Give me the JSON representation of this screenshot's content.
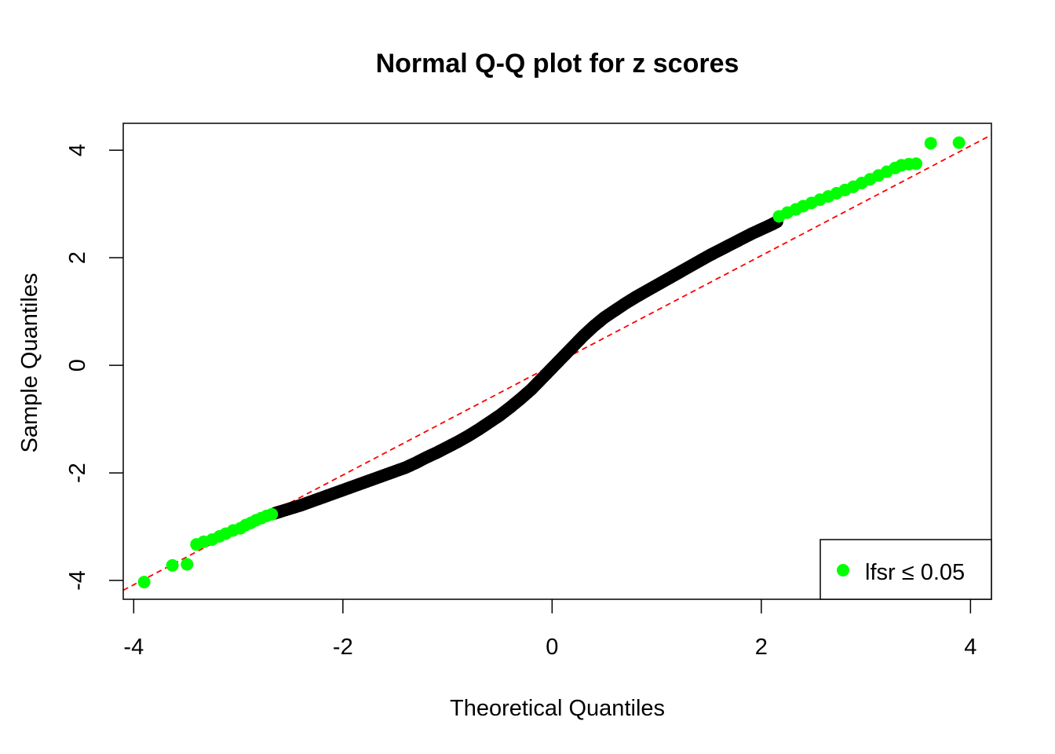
{
  "chart_data": {
    "type": "scatter",
    "title": "Normal Q-Q plot for z scores",
    "xlabel": "Theoretical Quantiles",
    "ylabel": "Sample Quantiles",
    "xlim": [
      -4.1,
      4.2
    ],
    "ylim": [
      -4.35,
      4.5
    ],
    "x_ticks": [
      -4,
      -2,
      0,
      2,
      4
    ],
    "y_ticks": [
      -4,
      -2,
      0,
      2,
      4
    ],
    "x_tick_labels": [
      "-4",
      "-2",
      "0",
      "2",
      "4"
    ],
    "y_tick_labels": [
      "-4",
      "-2",
      "0",
      "2",
      "4"
    ],
    "grid": false,
    "legend": {
      "position": "bottom-right",
      "label": "lfsr ≤ 0.05",
      "color": "#00ff00"
    },
    "reference_line": {
      "slope": 1.02,
      "intercept": 0.0,
      "color": "#ff0000",
      "style": "dashed"
    },
    "series": [
      {
        "name": "",
        "color": "#000000",
        "points": [
          [
            -2.65,
            -2.75
          ],
          [
            -2.6,
            -2.72
          ],
          [
            -2.5,
            -2.66
          ],
          [
            -2.4,
            -2.6
          ],
          [
            -2.3,
            -2.53
          ],
          [
            -2.2,
            -2.46
          ],
          [
            -2.1,
            -2.39
          ],
          [
            -2.0,
            -2.32
          ],
          [
            -1.9,
            -2.25
          ],
          [
            -1.8,
            -2.18
          ],
          [
            -1.7,
            -2.11
          ],
          [
            -1.6,
            -2.04
          ],
          [
            -1.5,
            -1.97
          ],
          [
            -1.4,
            -1.9
          ],
          [
            -1.3,
            -1.81
          ],
          [
            -1.2,
            -1.71
          ],
          [
            -1.1,
            -1.62
          ],
          [
            -1.0,
            -1.52
          ],
          [
            -0.9,
            -1.42
          ],
          [
            -0.8,
            -1.31
          ],
          [
            -0.7,
            -1.19
          ],
          [
            -0.6,
            -1.06
          ],
          [
            -0.5,
            -0.93
          ],
          [
            -0.4,
            -0.78
          ],
          [
            -0.3,
            -0.62
          ],
          [
            -0.2,
            -0.45
          ],
          [
            -0.1,
            -0.25
          ],
          [
            0.0,
            -0.05
          ],
          [
            0.1,
            0.15
          ],
          [
            0.2,
            0.35
          ],
          [
            0.3,
            0.55
          ],
          [
            0.4,
            0.73
          ],
          [
            0.5,
            0.89
          ],
          [
            0.6,
            1.02
          ],
          [
            0.7,
            1.15
          ],
          [
            0.8,
            1.27
          ],
          [
            0.9,
            1.38
          ],
          [
            1.0,
            1.49
          ],
          [
            1.1,
            1.6
          ],
          [
            1.2,
            1.71
          ],
          [
            1.3,
            1.82
          ],
          [
            1.4,
            1.93
          ],
          [
            1.5,
            2.04
          ],
          [
            1.6,
            2.14
          ],
          [
            1.7,
            2.24
          ],
          [
            1.8,
            2.34
          ],
          [
            1.9,
            2.44
          ],
          [
            2.0,
            2.53
          ],
          [
            2.1,
            2.62
          ],
          [
            2.15,
            2.67
          ]
        ]
      },
      {
        "name": "lfsr ≤ 0.05",
        "color": "#00ff00",
        "points": [
          [
            -3.9,
            -4.03
          ],
          [
            -3.63,
            -3.72
          ],
          [
            -3.49,
            -3.7
          ],
          [
            -3.4,
            -3.33
          ],
          [
            -3.33,
            -3.28
          ],
          [
            -3.25,
            -3.24
          ],
          [
            -3.18,
            -3.18
          ],
          [
            -3.12,
            -3.13
          ],
          [
            -3.05,
            -3.07
          ],
          [
            -2.98,
            -3.03
          ],
          [
            -2.93,
            -2.97
          ],
          [
            -2.88,
            -2.93
          ],
          [
            -2.83,
            -2.88
          ],
          [
            -2.78,
            -2.84
          ],
          [
            -2.73,
            -2.8
          ],
          [
            -2.68,
            -2.77
          ],
          [
            2.17,
            2.77
          ],
          [
            2.25,
            2.84
          ],
          [
            2.33,
            2.9
          ],
          [
            2.4,
            2.96
          ],
          [
            2.48,
            3.02
          ],
          [
            2.56,
            3.08
          ],
          [
            2.64,
            3.14
          ],
          [
            2.72,
            3.2
          ],
          [
            2.8,
            3.26
          ],
          [
            2.88,
            3.32
          ],
          [
            2.96,
            3.39
          ],
          [
            3.04,
            3.46
          ],
          [
            3.12,
            3.53
          ],
          [
            3.2,
            3.6
          ],
          [
            3.28,
            3.67
          ],
          [
            3.34,
            3.72
          ],
          [
            3.41,
            3.74
          ],
          [
            3.48,
            3.75
          ],
          [
            3.62,
            4.13
          ],
          [
            3.89,
            4.14
          ]
        ]
      }
    ]
  }
}
